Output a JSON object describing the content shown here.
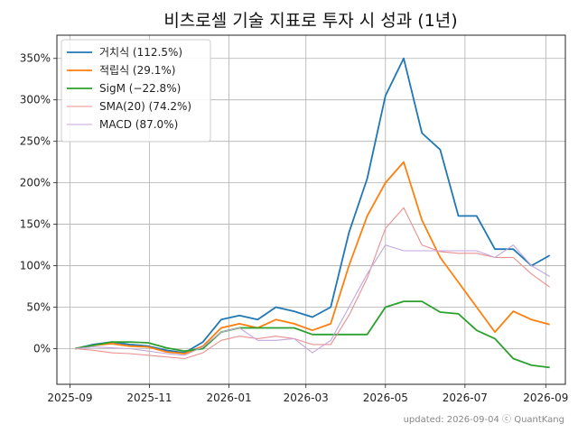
{
  "chart_data": {
    "type": "line",
    "title": "비츠로셀 기술 지표로 투자 시 성과 (1년)",
    "footer": "updated: 2026-09-04 ⓒ QuantKang",
    "xlabel": "",
    "ylabel": "",
    "x_ticks": [
      "2025-09",
      "2025-11",
      "2026-01",
      "2026-03",
      "2026-05",
      "2026-07",
      "2026-09"
    ],
    "y_ticks": [
      "0%",
      "50%",
      "100%",
      "150%",
      "200%",
      "250%",
      "300%",
      "350%"
    ],
    "y_unit": "%",
    "x_range": [
      "2025-08-22",
      "2026-09-16"
    ],
    "ylim": [
      -43,
      378
    ],
    "grid": true,
    "legend_position": "top-left",
    "dates": [
      "2025-09-05",
      "2025-09-19",
      "2025-10-03",
      "2025-10-17",
      "2025-10-31",
      "2025-11-14",
      "2025-11-28",
      "2025-12-12",
      "2025-12-26",
      "2026-01-09",
      "2026-01-23",
      "2026-02-06",
      "2026-02-20",
      "2026-03-06",
      "2026-03-20",
      "2026-04-03",
      "2026-04-17",
      "2026-05-01",
      "2026-05-15",
      "2026-05-29",
      "2026-06-12",
      "2026-06-26",
      "2026-07-10",
      "2026-07-24",
      "2026-08-07",
      "2026-08-21",
      "2026-09-04"
    ],
    "series": [
      {
        "name": "거치식 (112.5%)",
        "color": "#1f77b4",
        "width": 1.8,
        "values": [
          0,
          5,
          8,
          5,
          3,
          -2,
          -5,
          8,
          35,
          40,
          35,
          50,
          45,
          38,
          50,
          140,
          205,
          305,
          350,
          260,
          240,
          160,
          160,
          120,
          120,
          100,
          112.5
        ]
      },
      {
        "name": "적립식 (29.1%)",
        "color": "#ff7f0e",
        "width": 1.8,
        "values": [
          0,
          4,
          6,
          3,
          2,
          -4,
          -6,
          3,
          25,
          30,
          25,
          35,
          30,
          22,
          30,
          100,
          160,
          200,
          225,
          155,
          110,
          80,
          50,
          20,
          45,
          35,
          29.1
        ]
      },
      {
        "name": "SigM (−22.8%)",
        "color": "#2ca02c",
        "width": 1.8,
        "values": [
          0,
          4,
          8,
          8,
          7,
          1,
          -3,
          0,
          20,
          25,
          25,
          25,
          25,
          17,
          17,
          17,
          17,
          50,
          57,
          57,
          44,
          42,
          22,
          12,
          -12,
          -20,
          -22.8
        ]
      },
      {
        "name": "SMA(20) (74.2%)",
        "color": "#e8908f",
        "width": 1.1,
        "values": [
          0,
          -2,
          -5,
          -6,
          -8,
          -10,
          -12,
          -5,
          10,
          15,
          12,
          15,
          12,
          5,
          5,
          40,
          85,
          145,
          170,
          125,
          117,
          115,
          115,
          110,
          110,
          90,
          74.2
        ]
      },
      {
        "name": "MACD (87.0%)",
        "color": "#c4a6dd",
        "width": 1.1,
        "values": [
          0,
          2,
          1,
          0,
          -3,
          -6,
          -8,
          2,
          20,
          25,
          10,
          10,
          12,
          -5,
          10,
          50,
          90,
          125,
          118,
          118,
          118,
          118,
          118,
          110,
          125,
          100,
          87.0
        ]
      }
    ]
  }
}
